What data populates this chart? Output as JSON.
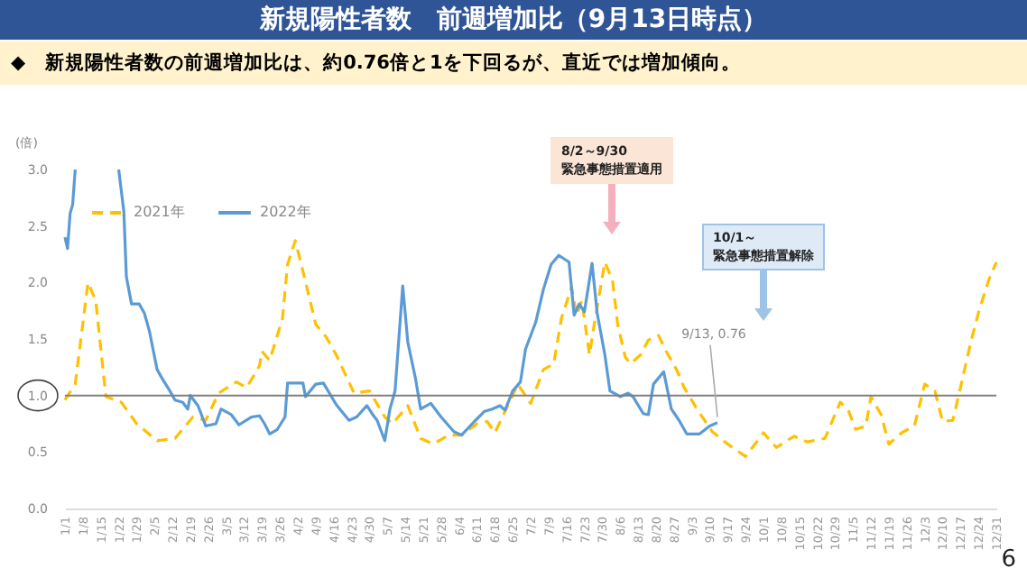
{
  "chart_data": {
    "type": "line",
    "title": "新規陽性者数　前週増加比（9月13日時点）",
    "subtitle": "◆　新規陽性者数の前週増加比は、約0.76倍と1を下回るが、直近では増加傾向。",
    "ylabel": "(倍)",
    "xlim": [
      "--01-01",
      "--12-31"
    ],
    "ylim": [
      0,
      3
    ],
    "yticks": [
      {
        "value": 0,
        "label": "0.0"
      },
      {
        "value": 0.5,
        "label": "0.5"
      },
      {
        "value": 1,
        "label": "1.0"
      },
      {
        "value": 1.5,
        "label": "1.5"
      },
      {
        "value": 2,
        "label": "2.0"
      },
      {
        "value": 2.5,
        "label": "2.5"
      },
      {
        "value": 3,
        "label": "3.0"
      }
    ],
    "xticks": [
      {
        "value": "--01-01",
        "label": "1/1"
      },
      {
        "value": "--01-08",
        "label": "1/8"
      },
      {
        "value": "--01-15",
        "label": "1/15"
      },
      {
        "value": "--01-22",
        "label": "1/22"
      },
      {
        "value": "--01-29",
        "label": "1/29"
      },
      {
        "value": "--02-05",
        "label": "2/5"
      },
      {
        "value": "--02-12",
        "label": "2/12"
      },
      {
        "value": "--02-19",
        "label": "2/19"
      },
      {
        "value": "--02-26",
        "label": "2/26"
      },
      {
        "value": "--03-05",
        "label": "3/5"
      },
      {
        "value": "--03-12",
        "label": "3/12"
      },
      {
        "value": "--03-19",
        "label": "3/19"
      },
      {
        "value": "--03-26",
        "label": "3/26"
      },
      {
        "value": "--04-02",
        "label": "4/2"
      },
      {
        "value": "--04-09",
        "label": "4/9"
      },
      {
        "value": "--04-16",
        "label": "4/16"
      },
      {
        "value": "--04-23",
        "label": "4/23"
      },
      {
        "value": "--04-30",
        "label": "4/30"
      },
      {
        "value": "--05-07",
        "label": "5/7"
      },
      {
        "value": "--05-14",
        "label": "5/14"
      },
      {
        "value": "--05-21",
        "label": "5/21"
      },
      {
        "value": "--05-28",
        "label": "5/28"
      },
      {
        "value": "--06-04",
        "label": "6/4"
      },
      {
        "value": "--06-11",
        "label": "6/11"
      },
      {
        "value": "--06-18",
        "label": "6/18"
      },
      {
        "value": "--06-25",
        "label": "6/25"
      },
      {
        "value": "--07-02",
        "label": "7/2"
      },
      {
        "value": "--07-09",
        "label": "7/9"
      },
      {
        "value": "--07-16",
        "label": "7/16"
      },
      {
        "value": "--07-23",
        "label": "7/23"
      },
      {
        "value": "--07-30",
        "label": "7/30"
      },
      {
        "value": "--08-06",
        "label": "8/6"
      },
      {
        "value": "--08-13",
        "label": "8/13"
      },
      {
        "value": "--08-20",
        "label": "8/20"
      },
      {
        "value": "--08-27",
        "label": "8/27"
      },
      {
        "value": "--09-03",
        "label": "9/3"
      },
      {
        "value": "--09-10",
        "label": "9/10"
      },
      {
        "value": "--09-17",
        "label": "9/17"
      },
      {
        "value": "--09-24",
        "label": "9/24"
      },
      {
        "value": "--10-01",
        "label": "10/1"
      },
      {
        "value": "--10-08",
        "label": "10/8"
      },
      {
        "value": "--10-15",
        "label": "10/15"
      },
      {
        "value": "--10-22",
        "label": "10/22"
      },
      {
        "value": "--10-29",
        "label": "10/29"
      },
      {
        "value": "--11-05",
        "label": "11/5"
      },
      {
        "value": "--11-12",
        "label": "11/12"
      },
      {
        "value": "--11-19",
        "label": "11/19"
      },
      {
        "value": "--11-26",
        "label": "11/26"
      },
      {
        "value": "--12-03",
        "label": "12/3"
      },
      {
        "value": "--12-10",
        "label": "12/10"
      },
      {
        "value": "--12-17",
        "label": "12/17"
      },
      {
        "value": "--12-24",
        "label": "12/24"
      },
      {
        "value": "--12-31",
        "label": "12/31"
      }
    ],
    "legend": "top left",
    "series": [
      {
        "name": "2021年",
        "color": "#ffc000",
        "line_style": "dashed",
        "x": [
          "--01-01",
          "--01-05",
          "--01-10",
          "--01-13",
          "--01-17",
          "--01-23",
          "--01-29",
          "--02-06",
          "--02-13",
          "--02-20",
          "--02-25",
          "--03-02",
          "--03-09",
          "--03-13",
          "--03-18",
          "--03-19",
          "--03-22",
          "--03-27",
          "--03-29",
          "--04-01",
          "--04-04",
          "--04-09",
          "--04-13",
          "--04-17",
          "--04-24",
          "--04-30",
          "--05-06",
          "--05-09",
          "--05-15",
          "--05-20",
          "--05-25",
          "--05-31",
          "--06-05",
          "--06-11",
          "--06-15",
          "--06-18",
          "--06-22",
          "--06-27",
          "--07-02",
          "--07-07",
          "--07-11",
          "--07-14",
          "--07-18",
          "--07-20",
          "--07-22",
          "--07-25",
          "--07-27",
          "--07-31",
          "--08-03",
          "--08-05",
          "--08-08",
          "--08-10",
          "--08-14",
          "--08-17",
          "--08-21",
          "--08-24",
          "--08-28",
          "--08-31",
          "--09-05",
          "--09-11",
          "--09-17",
          "--09-24",
          "--10-01",
          "--10-06",
          "--10-13",
          "--10-18",
          "--10-25",
          "--10-31",
          "--11-03",
          "--11-06",
          "--11-10",
          "--11-12",
          "--11-16",
          "--11-19",
          "--11-24",
          "--11-29",
          "--12-03",
          "--12-07",
          "--12-10",
          "--12-14",
          "--12-17",
          "--12-21",
          "--12-24",
          "--12-28",
          "--12-31"
        ],
        "values": [
          0.96,
          1.1,
          2.0,
          1.84,
          0.99,
          0.94,
          0.75,
          0.6,
          0.62,
          0.81,
          0.78,
          1.02,
          1.12,
          1.07,
          1.26,
          1.39,
          1.31,
          1.68,
          2.16,
          2.37,
          2.1,
          1.63,
          1.52,
          1.36,
          1.02,
          1.04,
          0.81,
          0.75,
          0.91,
          0.62,
          0.57,
          0.65,
          0.65,
          0.75,
          0.77,
          0.67,
          0.86,
          1.1,
          0.93,
          1.23,
          1.28,
          1.68,
          1.96,
          1.71,
          1.84,
          1.36,
          1.65,
          2.18,
          2.02,
          1.63,
          1.34,
          1.28,
          1.36,
          1.49,
          1.53,
          1.39,
          1.23,
          1.07,
          0.88,
          0.68,
          0.57,
          0.46,
          0.67,
          0.54,
          0.64,
          0.59,
          0.62,
          0.94,
          0.88,
          0.7,
          0.73,
          0.99,
          0.83,
          0.57,
          0.67,
          0.73,
          1.1,
          1.04,
          0.77,
          0.78,
          1.07,
          1.47,
          1.73,
          2.02,
          2.18
        ]
      },
      {
        "name": "2022年",
        "color": "#5b9bd5",
        "line_style": "solid",
        "x": [
          "--01-01",
          "--01-02",
          "--01-03",
          "--01-04",
          "--01-05",
          "--01-06",
          "--01-21",
          "--01-22",
          "--01-24",
          "--01-25",
          "--01-27",
          "--01-30",
          "--02-01",
          "--02-03",
          "--02-06",
          "--02-08",
          "--02-11",
          "--02-13",
          "--02-16",
          "--02-18",
          "--02-19",
          "--02-22",
          "--02-25",
          "--03-01",
          "--03-03",
          "--03-07",
          "--03-10",
          "--03-15",
          "--03-18",
          "--03-20",
          "--03-22",
          "--03-25",
          "--03-28",
          "--03-29",
          "--04-04",
          "--04-05",
          "--04-09",
          "--04-12",
          "--04-17",
          "--04-22",
          "--04-25",
          "--04-29",
          "--05-01",
          "--05-03",
          "--05-06",
          "--05-08",
          "--05-10",
          "--05-13",
          "--05-15",
          "--05-18",
          "--05-20",
          "--05-24",
          "--05-28",
          "--06-02",
          "--06-05",
          "--06-10",
          "--06-14",
          "--06-17",
          "--06-20",
          "--06-22",
          "--06-25",
          "--06-28",
          "--06-30",
          "--07-04",
          "--07-07",
          "--07-10",
          "--07-13",
          "--07-17",
          "--07-19",
          "--07-21",
          "--07-23",
          "--07-26",
          "--07-28",
          "--07-31",
          "--08-02",
          "--08-06",
          "--08-09",
          "--08-11",
          "--08-15",
          "--08-17",
          "--08-19",
          "--08-23",
          "--08-26",
          "--08-29",
          "--09-01",
          "--09-06",
          "--09-10",
          "--09-13"
        ],
        "values": [
          2.4,
          2.3,
          2.61,
          2.69,
          3.0,
          null,
          null,
          3.0,
          2.63,
          2.05,
          1.81,
          1.81,
          1.73,
          1.57,
          1.23,
          1.15,
          1.04,
          0.96,
          0.94,
          0.88,
          1.0,
          0.91,
          0.73,
          0.75,
          0.88,
          0.83,
          0.74,
          0.81,
          0.82,
          0.75,
          0.66,
          0.7,
          0.81,
          1.11,
          1.11,
          0.99,
          1.1,
          1.11,
          0.92,
          0.78,
          0.81,
          0.91,
          0.84,
          0.78,
          0.6,
          0.88,
          1.04,
          1.97,
          1.47,
          1.15,
          0.88,
          0.93,
          0.81,
          0.68,
          0.65,
          0.77,
          0.86,
          0.88,
          0.91,
          0.87,
          1.04,
          1.12,
          1.41,
          1.65,
          1.94,
          2.16,
          2.24,
          2.18,
          1.71,
          1.81,
          1.74,
          2.17,
          1.73,
          1.36,
          1.04,
          0.99,
          1.02,
          0.99,
          0.84,
          0.83,
          1.1,
          1.21,
          0.88,
          0.78,
          0.66,
          0.66,
          0.73,
          0.76
        ]
      }
    ],
    "ref_lines": [
      {
        "axis": "y",
        "value": 1,
        "color": "#7f7f7f"
      }
    ],
    "annotations": [
      "8/2～9/30緊急事態措置適用",
      "10/1～緊急事態措置解除",
      {
        "text": "9/13, 0.76",
        "x": "--09-13",
        "y": 0.76
      },
      "6"
    ]
  }
}
